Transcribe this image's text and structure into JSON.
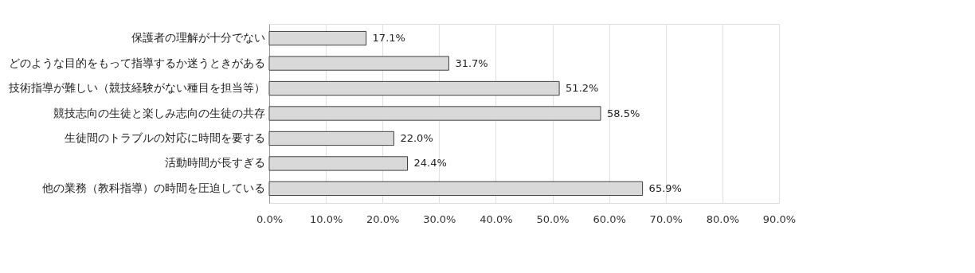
{
  "chart_data": {
    "type": "bar",
    "orientation": "horizontal",
    "categories": [
      "保護者の理解が十分でない",
      "どのような目的をもって指導するか迷うときがある",
      "技術指導が難しい（競技経験がない種目を担当等）",
      "競技志向の生徒と楽しみ志向の生徒の共存",
      "生徒間のトラブルの対応に時間を要する",
      "活動時間が長すぎる",
      "他の業務（教科指導）の時間を圧迫している"
    ],
    "values": [
      17.1,
      31.7,
      51.2,
      58.5,
      22.0,
      24.4,
      65.9
    ],
    "value_labels": [
      "17.1%",
      "31.7%",
      "51.2%",
      "58.5%",
      "22.0%",
      "24.4%",
      "65.9%"
    ],
    "color": "#d9d9d9",
    "xlim": [
      0,
      90
    ],
    "xticks": [
      {
        "value": 0,
        "label": "0.0%"
      },
      {
        "value": 10,
        "label": "10.0%"
      },
      {
        "value": 20,
        "label": "20.0%"
      },
      {
        "value": 30,
        "label": "30.0%"
      },
      {
        "value": 40,
        "label": "40.0%"
      },
      {
        "value": 50,
        "label": "50.0%"
      },
      {
        "value": 60,
        "label": "60.0%"
      },
      {
        "value": 70,
        "label": "70.0%"
      },
      {
        "value": 80,
        "label": "80.0%"
      },
      {
        "value": 90,
        "label": "90.0%"
      }
    ],
    "grid": "x"
  }
}
